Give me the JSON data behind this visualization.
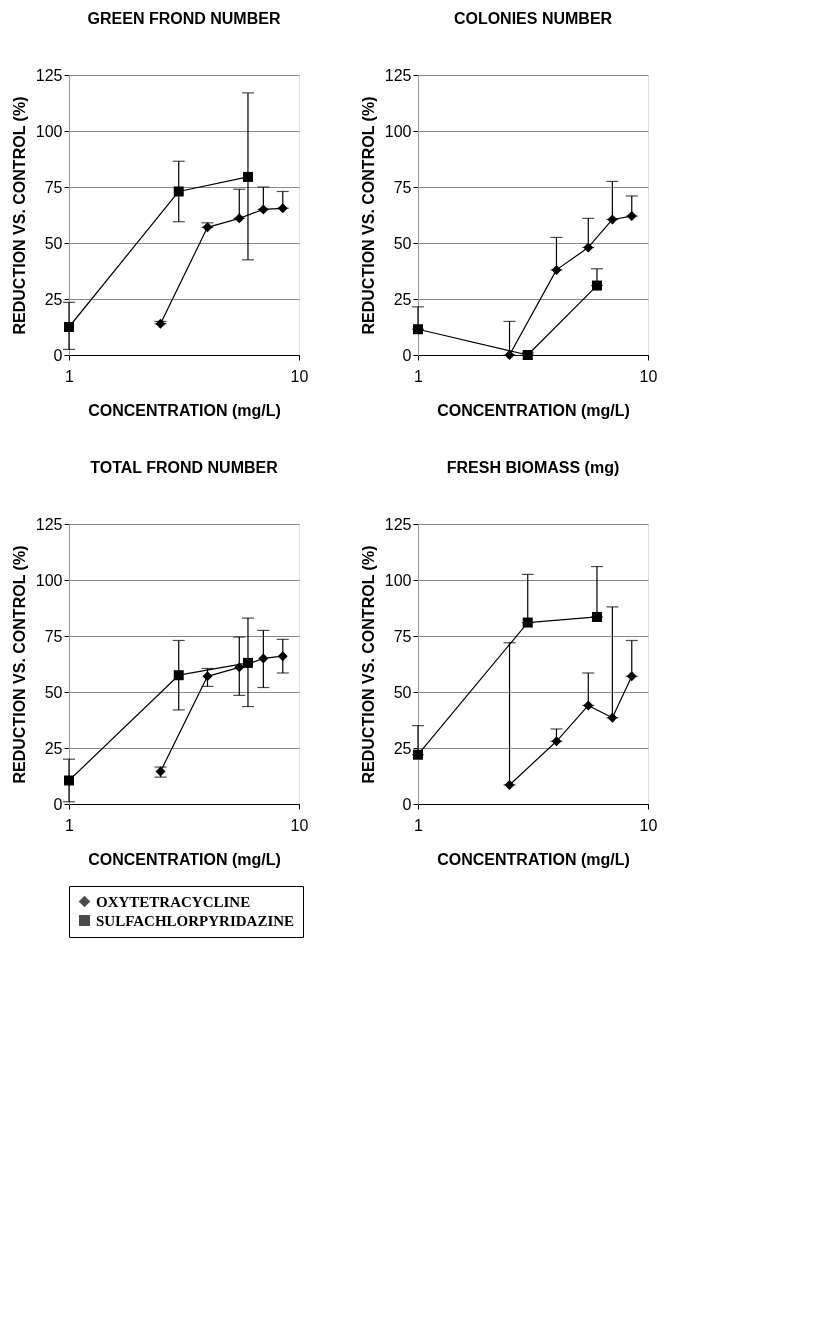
{
  "chart_data": [
    {
      "type": "line",
      "title": "GREEN FROND NUMBER",
      "xlabel": "CONCENTRATION (mg/L)",
      "ylabel": "REDUCTION VS. CONTROL (%)",
      "log": "x",
      "xlim": [
        1,
        10
      ],
      "xticks": [
        1,
        10
      ],
      "ylim": [
        0,
        125
      ],
      "yticks": [
        0,
        25,
        50,
        75,
        100,
        125
      ],
      "grid": "y",
      "legend": "bottom",
      "line_style": "solid",
      "series": [
        {
          "name": "OXYTETRACYCLINE",
          "color": "#000000",
          "marker": "diamond",
          "x": [
            2.5,
            4,
            5.5,
            7,
            8.5
          ],
          "values": [
            14,
            57,
            61,
            65,
            65.5
          ],
          "errors": [
            [
              14,
              15
            ],
            [
              57,
              59
            ],
            [
              61,
              74
            ],
            [
              65,
              75
            ],
            [
              65.5,
              73
            ]
          ]
        },
        {
          "name": "SULFACHLORPYRIDAZINE",
          "color": "#000000",
          "marker": "square",
          "x": [
            1,
            3,
            6
          ],
          "values": [
            12.5,
            73,
            79.5
          ],
          "errors": [
            [
              2.5,
              23.5
            ],
            [
              59.5,
              86.5
            ],
            [
              42.5,
              117
            ]
          ]
        }
      ]
    },
    {
      "type": "line",
      "title": "COLONIES NUMBER",
      "xlabel": "CONCENTRATION (mg/L)",
      "ylabel": "REDUCTION VS. CONTROL (%)",
      "log": "x",
      "xlim": [
        1,
        10
      ],
      "xticks": [
        1,
        10
      ],
      "ylim": [
        0,
        125
      ],
      "yticks": [
        0,
        25,
        50,
        75,
        100,
        125
      ],
      "grid": "y",
      "legend": "bottom",
      "line_style": "solid",
      "series": [
        {
          "name": "OXYTETRACYCLINE",
          "color": "#000000",
          "marker": "diamond",
          "x": [
            2.5,
            4,
            5.5,
            7,
            8.5
          ],
          "values": [
            0,
            38,
            48,
            60.5,
            62
          ],
          "errors": [
            [
              0,
              15
            ],
            [
              38,
              52.5
            ],
            [
              48,
              61
            ],
            [
              60.5,
              77.5
            ],
            [
              62,
              71
            ]
          ]
        },
        {
          "name": "SULFACHLORPYRIDAZINE",
          "color": "#000000",
          "marker": "square",
          "x": [
            1,
            3,
            6
          ],
          "values": [
            11.5,
            0,
            31
          ],
          "errors": [
            [
              11.5,
              21.5
            ],
            [
              0,
              1
            ],
            [
              31,
              38.5
            ]
          ]
        }
      ]
    },
    {
      "type": "line",
      "title": "TOTAL FROND NUMBER",
      "xlabel": "CONCENTRATION (mg/L)",
      "ylabel": "REDUCTION VS. CONTROL (%)",
      "log": "x",
      "xlim": [
        1,
        10
      ],
      "xticks": [
        1,
        10
      ],
      "ylim": [
        0,
        125
      ],
      "yticks": [
        0,
        25,
        50,
        75,
        100,
        125
      ],
      "grid": "y",
      "legend": "bottom",
      "line_style": "solid",
      "series": [
        {
          "name": "OXYTETRACYCLINE",
          "color": "#000000",
          "marker": "diamond",
          "x": [
            2.5,
            4,
            5.5,
            7,
            8.5
          ],
          "values": [
            14.5,
            57,
            61,
            65,
            66
          ],
          "errors": [
            [
              12,
              16.5
            ],
            [
              52.5,
              60.5
            ],
            [
              48.5,
              74.5
            ],
            [
              52,
              77.5
            ],
            [
              58.5,
              73.5
            ]
          ]
        },
        {
          "name": "SULFACHLORPYRIDAZINE",
          "color": "#000000",
          "marker": "square",
          "x": [
            1,
            3,
            6
          ],
          "values": [
            10.5,
            57.5,
            63
          ],
          "errors": [
            [
              1,
              20
            ],
            [
              42,
              73
            ],
            [
              43.5,
              83
            ]
          ]
        }
      ]
    },
    {
      "type": "line",
      "title": "FRESH BIOMASS (mg)",
      "xlabel": "CONCENTRATION (mg/L)",
      "ylabel": "REDUCTION VS. CONTROL (%)",
      "log": "x",
      "xlim": [
        1,
        10
      ],
      "xticks": [
        1,
        10
      ],
      "ylim": [
        0,
        125
      ],
      "yticks": [
        0,
        25,
        50,
        75,
        100,
        125
      ],
      "grid": "y",
      "legend": "bottom",
      "line_style": "solid",
      "series": [
        {
          "name": "OXYTETRACYCLINE",
          "color": "#000000",
          "marker": "diamond",
          "x": [
            2.5,
            4,
            5.5,
            7,
            8.5
          ],
          "values": [
            8.5,
            28,
            44,
            38.5,
            57
          ],
          "errors": [
            [
              8.5,
              72
            ],
            [
              28,
              33.5
            ],
            [
              44,
              58.5
            ],
            [
              38.5,
              88
            ],
            [
              57,
              73
            ]
          ]
        },
        {
          "name": "SULFACHLORPYRIDAZINE",
          "color": "#000000",
          "marker": "square",
          "x": [
            1,
            3,
            6
          ],
          "values": [
            22,
            81,
            83.5
          ],
          "errors": [
            [
              22,
              35
            ],
            [
              81,
              102.5
            ],
            [
              83.5,
              106
            ]
          ]
        }
      ]
    }
  ]
}
